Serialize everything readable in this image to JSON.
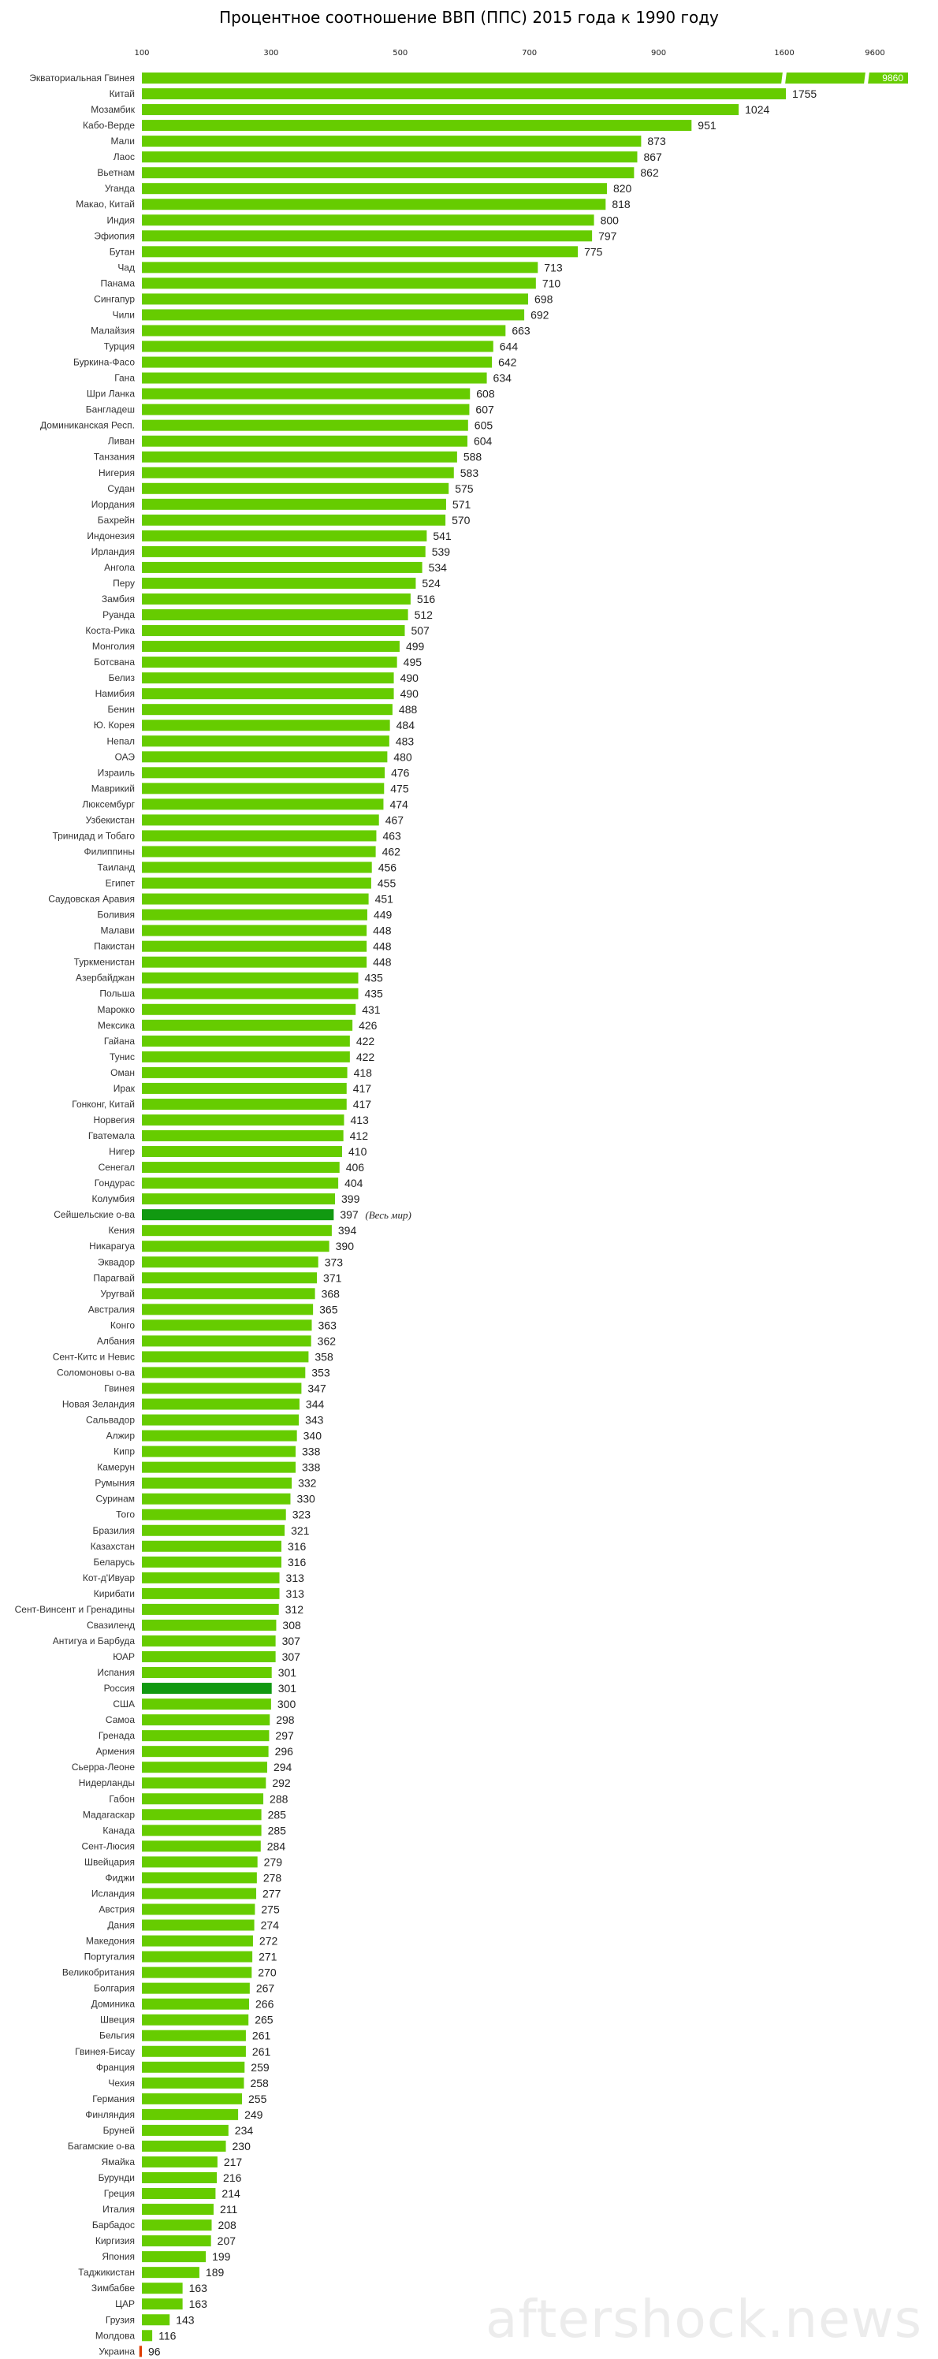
{
  "chart_data": {
    "type": "bar",
    "orientation": "horizontal",
    "title": "Процентное соотношение ВВП (ППС) 2015 года к 1990 году",
    "xlabel": "",
    "ylabel": "",
    "x_ticks": [
      "100",
      "300",
      "500",
      "700",
      "900",
      "1600",
      "9600"
    ],
    "axis_breaks": [
      "1600",
      "9600"
    ],
    "grid": false,
    "legend": "none",
    "colors": {
      "default": "#66cc00",
      "highlight": "#119911",
      "negative": "#e03c00"
    },
    "annotation": "(Весь мир)",
    "categories": [
      "Экваториальная Гвинея",
      "Китай",
      "Мозамбик",
      "Кабо-Верде",
      "Мали",
      "Лаос",
      "Вьетнам",
      "Уганда",
      "Макао, Китай",
      "Индия",
      "Эфиопия",
      "Бутан",
      "Чад",
      "Панама",
      "Сингапур",
      "Чили",
      "Малайзия",
      "Турция",
      "Буркина-Фасо",
      "Гана",
      "Шри Ланка",
      "Бангладеш",
      "Доминиканская Респ.",
      "Ливан",
      "Танзания",
      "Нигерия",
      "Судан",
      "Иордания",
      "Бахрейн",
      "Индонезия",
      "Ирландия",
      "Ангола",
      "Перу",
      "Замбия",
      "Руанда",
      "Коста-Рика",
      "Монголия",
      "Ботсвана",
      "Белиз",
      "Намибия",
      "Бенин",
      "Ю. Корея",
      "Непал",
      "ОАЭ",
      "Израиль",
      "Маврикий",
      "Люксембург",
      "Узбекистан",
      "Тринидад и Тобаго",
      "Филиппины",
      "Таиланд",
      "Египет",
      "Саудовская Аравия",
      "Боливия",
      "Малави",
      "Пакистан",
      "Туркменистан",
      "Азербайджан",
      "Польша",
      "Марокко",
      "Мексика",
      "Гайана",
      "Тунис",
      "Оман",
      "Ирак",
      "Гонконг, Китай",
      "Норвегия",
      "Гватемала",
      "Нигер",
      "Сенегал",
      "Гондурас",
      "Колумбия",
      "Сейшельские о-ва",
      "Кения",
      "Никарагуа",
      "Эквадор",
      "Парагвай",
      "Уругвай",
      "Австралия",
      "Конго",
      "Албания",
      "Сент-Китс и Невис",
      "Соломоновы о-ва",
      "Гвинея",
      "Новая Зеландия",
      "Сальвадор",
      "Алжир",
      "Кипр",
      "Камерун",
      "Румыния",
      "Суринам",
      "Того",
      "Бразилия",
      "Казахстан",
      "Беларусь",
      "Кот-д'Ивуар",
      "Кирибати",
      "Сент-Винсент и Гренадины",
      "Свазиленд",
      "Антигуа и Барбуда",
      "ЮАР",
      "Испания",
      "Россия",
      "США",
      "Самоа",
      "Гренада",
      "Армения",
      "Сьерра-Леоне",
      "Нидерланды",
      "Габон",
      "Мадагаскар",
      "Канада",
      "Сент-Люсия",
      "Швейцария",
      "Фиджи",
      "Исландия",
      "Австрия",
      "Дания",
      "Македония",
      "Португалия",
      "Великобритания",
      "Болгария",
      "Доминика",
      "Швеция",
      "Бельгия",
      "Гвинея-Бисау",
      "Франция",
      "Чехия",
      "Германия",
      "Финляндия",
      "Бруней",
      "Багамские о-ва",
      "Ямайка",
      "Бурунди",
      "Греция",
      "Италия",
      "Барбадос",
      "Киргизия",
      "Япония",
      "Таджикистан",
      "Зимбабве",
      "ЦАР",
      "Грузия",
      "Молдова",
      "Украина"
    ],
    "values": [
      9860,
      1755,
      1024,
      951,
      873,
      867,
      862,
      820,
      818,
      800,
      797,
      775,
      713,
      710,
      698,
      692,
      663,
      644,
      642,
      634,
      608,
      607,
      605,
      604,
      588,
      583,
      575,
      571,
      570,
      541,
      539,
      534,
      524,
      516,
      512,
      507,
      499,
      495,
      490,
      490,
      488,
      484,
      483,
      480,
      476,
      475,
      474,
      467,
      463,
      462,
      456,
      455,
      451,
      449,
      448,
      448,
      448,
      435,
      435,
      431,
      426,
      422,
      422,
      418,
      417,
      417,
      413,
      412,
      410,
      406,
      404,
      399,
      397,
      394,
      390,
      373,
      371,
      368,
      365,
      363,
      362,
      358,
      353,
      347,
      344,
      343,
      340,
      338,
      338,
      332,
      330,
      323,
      321,
      316,
      316,
      313,
      313,
      312,
      308,
      307,
      307,
      301,
      301,
      300,
      298,
      297,
      296,
      294,
      292,
      288,
      285,
      285,
      284,
      279,
      278,
      277,
      275,
      274,
      272,
      271,
      270,
      267,
      266,
      265,
      261,
      261,
      259,
      258,
      255,
      249,
      234,
      230,
      217,
      216,
      214,
      211,
      208,
      207,
      199,
      189,
      163,
      163,
      143,
      116,
      96
    ],
    "highlighted": [
      "Сейшельские о-ва",
      "Россия"
    ],
    "negative": [
      "Украина"
    ]
  },
  "watermark": "aftershock.news"
}
